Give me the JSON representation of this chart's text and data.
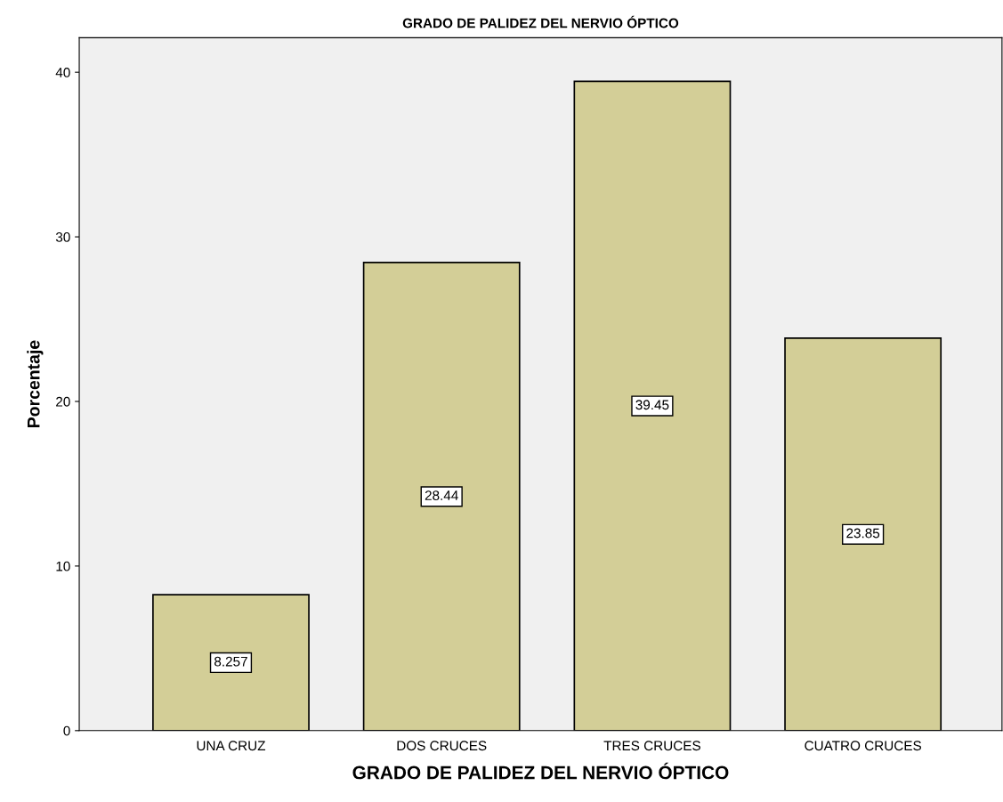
{
  "chart_data": {
    "type": "bar",
    "title": "GRADO DE PALIDEZ DEL NERVIO ÓPTICO",
    "xlabel": "GRADO DE PALIDEZ DEL NERVIO ÓPTICO",
    "ylabel": "Porcentaje",
    "categories": [
      "UNA CRUZ",
      "DOS CRUCES",
      "TRES CRUCES",
      "CUATRO CRUCES"
    ],
    "values": [
      8.257,
      28.44,
      39.45,
      23.85
    ],
    "color": "#d3ce97",
    "ylim": [
      0,
      42.1
    ],
    "yticks": [
      0,
      10,
      20,
      30,
      40
    ],
    "grid": false,
    "data_labels": true
  }
}
